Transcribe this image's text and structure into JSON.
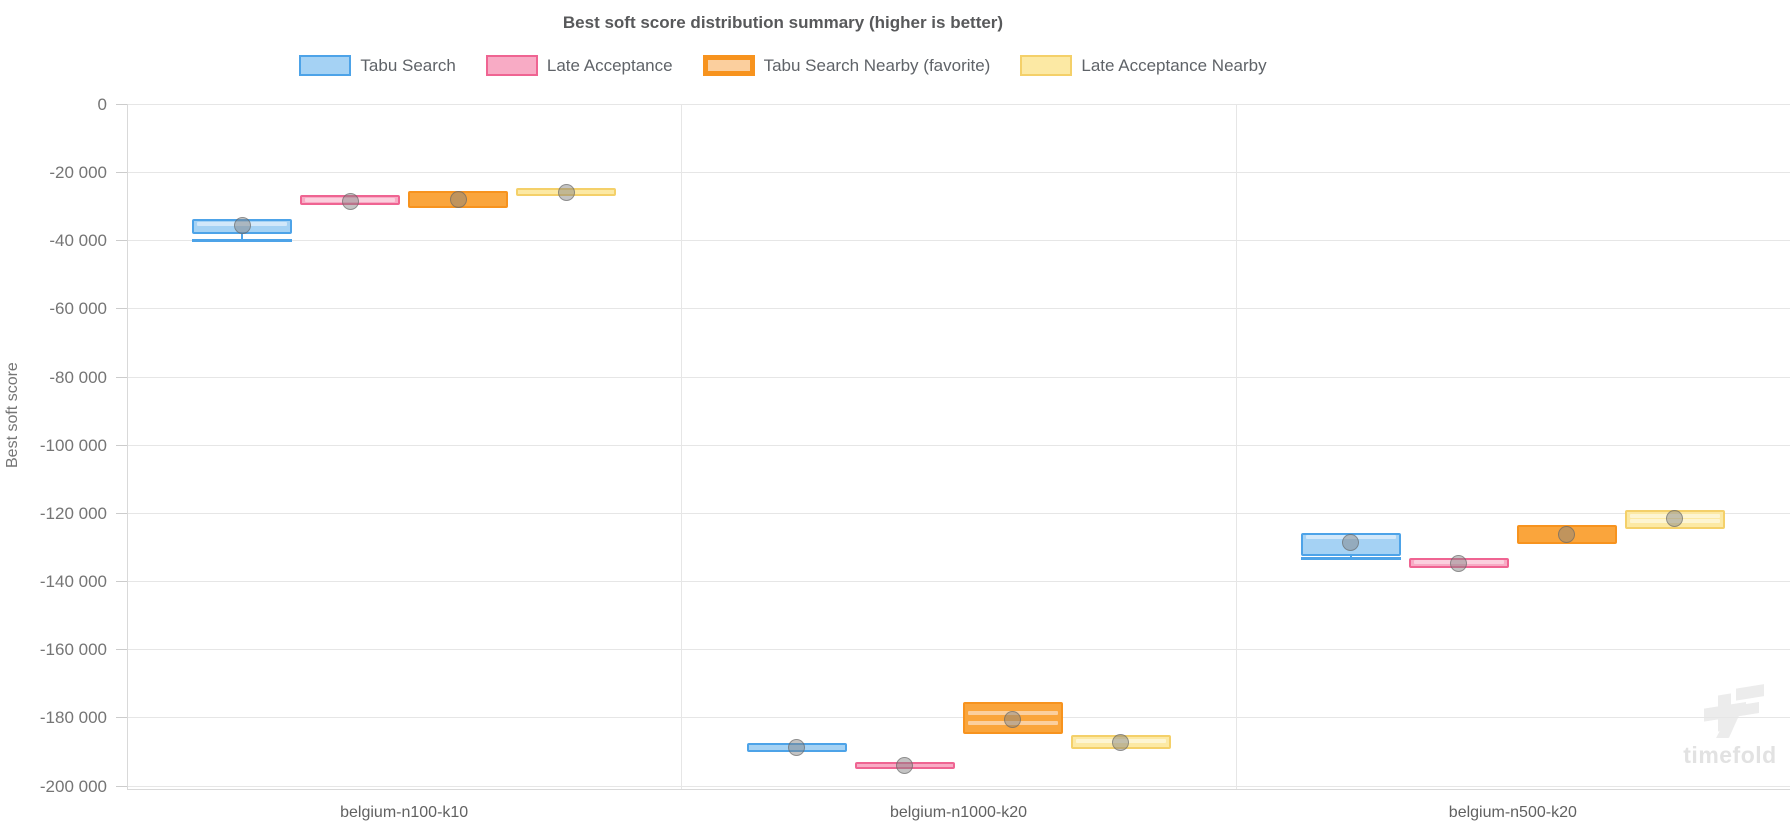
{
  "watermark": {
    "word": "timefold"
  },
  "chart_data": {
    "type": "box",
    "title": "Best soft score distribution summary (higher is better)",
    "xlabel": "",
    "ylabel": "Best soft score",
    "ylim": [
      -200000,
      0
    ],
    "ytick_step": 20000,
    "grid": true,
    "legend_position": "top",
    "y_tick_labels": [
      "0",
      "-20 000",
      "-40 000",
      "-60 000",
      "-80 000",
      "-100 000",
      "-120 000",
      "-140 000",
      "-160 000",
      "-180 000",
      "-200 000"
    ],
    "categories": [
      "belgium-n100-k10",
      "belgium-n1000-k20",
      "belgium-n500-k20"
    ],
    "series": [
      {
        "name": "Tabu Search",
        "key": "tabu-search",
        "favorite": false,
        "color": {
          "border": "#4da3e8",
          "fill": "#a5d2f4",
          "stripe": "#d2e8fa"
        },
        "boxes": [
          {
            "high": -34000,
            "low": -38000,
            "stripes": [
              -35100
            ],
            "min": -39900,
            "mean": -35700
          },
          {
            "high": -187900,
            "low": -189800,
            "stripes": [],
            "min": null,
            "mean": -188800
          },
          {
            "high": -126100,
            "low": -132400,
            "stripes": [
              -127100
            ],
            "min": -133100,
            "mean": -128700
          }
        ]
      },
      {
        "name": "Late Acceptance",
        "key": "late-acceptance",
        "favorite": false,
        "color": {
          "border": "#ef6492",
          "fill": "#f8abc5",
          "stripe": "#fbd0de"
        },
        "boxes": [
          {
            "high": -27100,
            "low": -29300,
            "stripes": [
              -28100
            ],
            "min": null,
            "mean": -28500
          },
          {
            "high": -193400,
            "low": -195000,
            "stripes": [],
            "min": null,
            "mean": -194200
          },
          {
            "high": -133600,
            "low": -135900,
            "stripes": [
              -134300
            ],
            "min": null,
            "mean": -134800
          }
        ]
      },
      {
        "name": "Tabu Search Nearby (favorite)",
        "key": "tabu-search-nearby",
        "favorite": true,
        "color": {
          "border": "#f7931e",
          "fill": "#faa53c",
          "stripe": "#fbcf9e"
        },
        "boxes": [
          {
            "high": -25800,
            "low": -30100,
            "stripes": [],
            "min": null,
            "mean": -27900
          },
          {
            "high": -175700,
            "low": -184700,
            "stripes": [
              -178800,
              -181600
            ],
            "min": null,
            "mean": -180500
          },
          {
            "high": -123800,
            "low": -128700,
            "stripes": [],
            "min": null,
            "mean": -126300
          }
        ]
      },
      {
        "name": "Late Acceptance Nearby",
        "key": "late-acceptance-nearby",
        "favorite": false,
        "color": {
          "border": "#f4d069",
          "fill": "#fce9a4",
          "stripe": "#fdf5d2"
        },
        "boxes": [
          {
            "high": -25000,
            "low": -26700,
            "stripes": [],
            "min": null,
            "mean": -25900
          },
          {
            "high": -185500,
            "low": -189100,
            "stripes": [
              -186900
            ],
            "min": null,
            "mean": -187300
          },
          {
            "high": -119300,
            "low": -124500,
            "stripes": [
              -121000,
              -122400
            ],
            "min": null,
            "mean": -121700
          }
        ]
      }
    ]
  }
}
